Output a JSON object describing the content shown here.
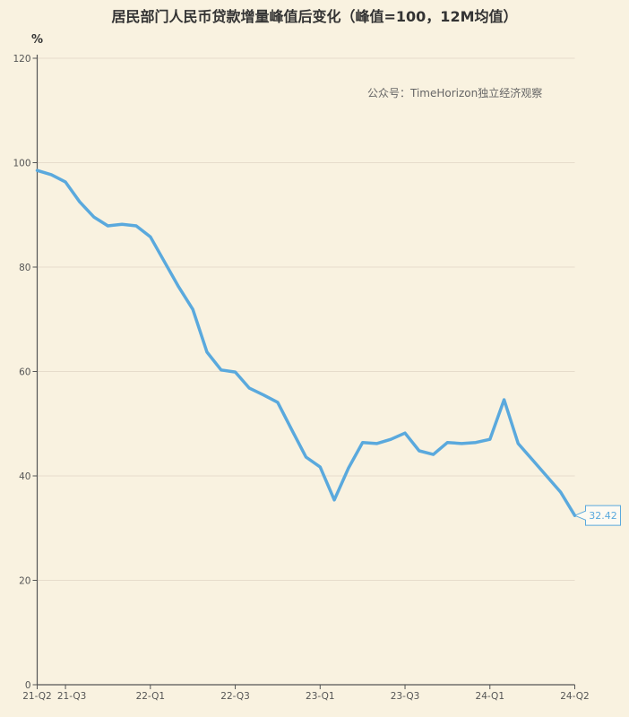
{
  "chart_data": {
    "type": "line",
    "title": "居民部门人民币贷款增量峰值后变化（峰值=100，12M均值）",
    "ylabel": "%",
    "xlabel": "",
    "watermark": "公众号：TimeHorizon独立经济观察",
    "ylim": [
      0,
      120
    ],
    "yticks": [
      0,
      20,
      40,
      60,
      80,
      100,
      120
    ],
    "grid": true,
    "x_tick_labels": [
      {
        "index": 0,
        "label": "21-Q2"
      },
      {
        "index": 2,
        "label": "21-Q3"
      },
      {
        "index": 8,
        "label": "22-Q1"
      },
      {
        "index": 14,
        "label": "22-Q3"
      },
      {
        "index": 20,
        "label": "23-Q1"
      },
      {
        "index": 26,
        "label": "23-Q3"
      },
      {
        "index": 32,
        "label": "24-Q1"
      },
      {
        "index": 38,
        "label": "24-Q2"
      }
    ],
    "series": [
      {
        "name": "居民部门人民币贷款增量",
        "color": "#5aa9dd",
        "values": [
          98.5,
          97.7,
          96.3,
          92.5,
          89.6,
          87.9,
          88.2,
          87.9,
          85.8,
          81.0,
          76.2,
          71.9,
          63.7,
          60.3,
          59.9,
          56.8,
          55.5,
          54.1,
          48.8,
          43.6,
          41.7,
          35.4,
          41.5,
          46.4,
          46.2,
          47.0,
          48.2,
          44.8,
          44.1,
          46.4,
          46.2,
          46.4,
          47.0,
          54.6,
          46.2,
          43.1,
          40.0,
          36.9,
          32.42
        ]
      }
    ],
    "last_value_label": "32.42"
  }
}
